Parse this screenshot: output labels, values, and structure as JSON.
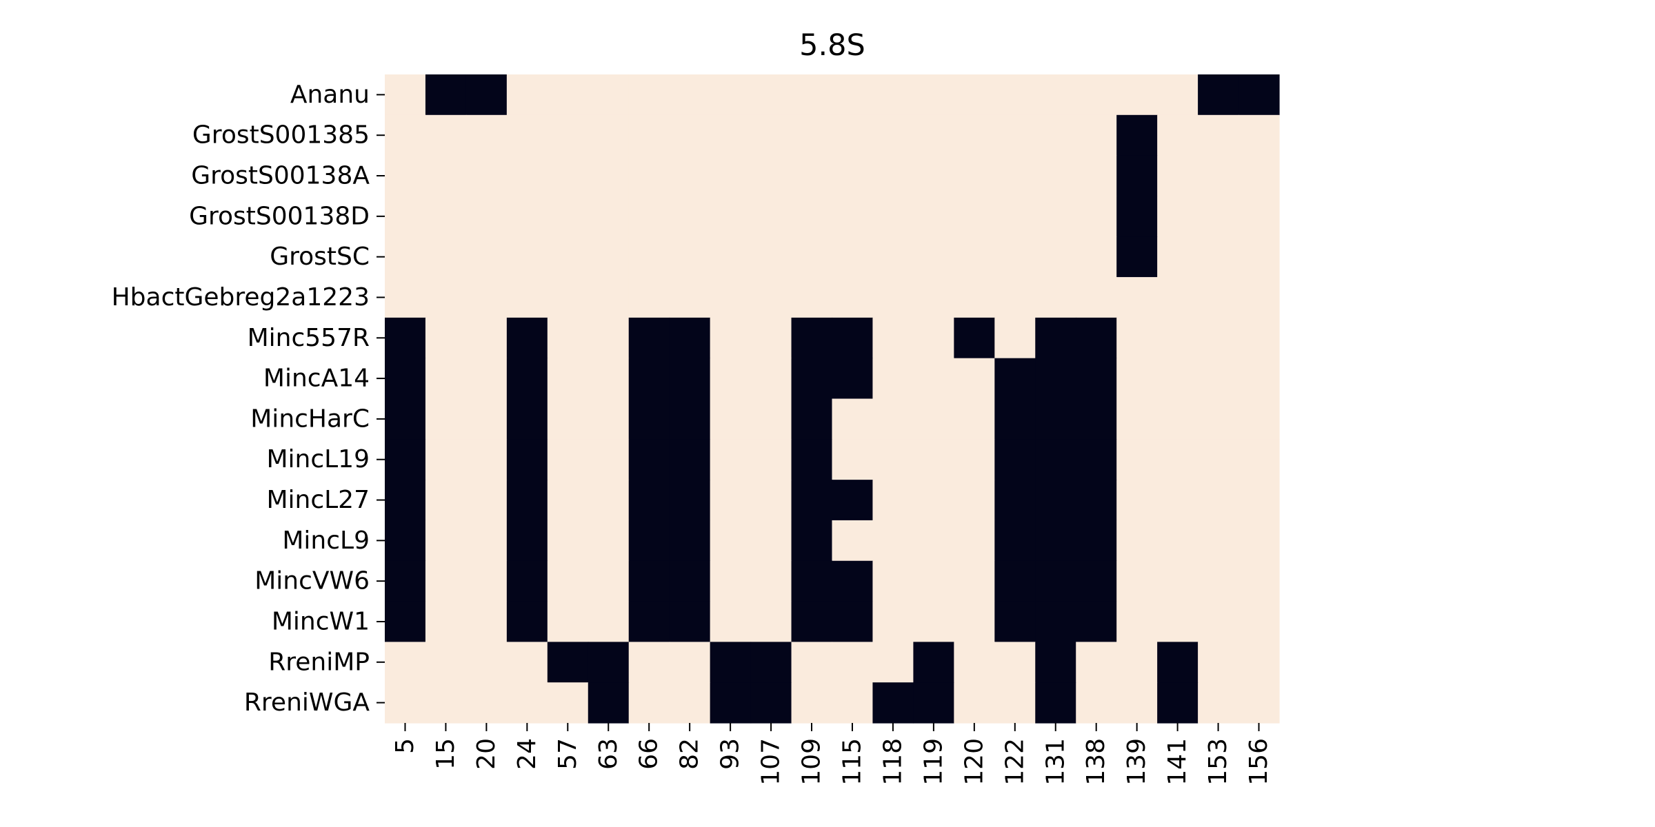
{
  "chart_data": {
    "type": "heatmap",
    "title": "5.8S",
    "xlabel": "",
    "ylabel": "",
    "colorbar": false,
    "colors": {
      "present": "#03051a",
      "absent": "#faebdd",
      "background": "#ffffff",
      "text": "#000000"
    },
    "columns": [
      "5",
      "15",
      "20",
      "24",
      "57",
      "63",
      "66",
      "82",
      "93",
      "107",
      "109",
      "115",
      "118",
      "119",
      "120",
      "122",
      "131",
      "138",
      "139",
      "141",
      "153",
      "156"
    ],
    "rows": [
      "Ananu",
      "GrostS001385",
      "GrostS00138A",
      "GrostS00138D",
      "GrostSC",
      "HbactGebreg2a1223",
      "Minc557R",
      "MincA14",
      "MincHarC",
      "MincL19",
      "MincL27",
      "MincL9",
      "MincVW6",
      "MincW1",
      "RreniMP",
      "RreniWGA"
    ],
    "values": [
      [
        0,
        1,
        1,
        0,
        0,
        0,
        0,
        0,
        0,
        0,
        0,
        0,
        0,
        0,
        0,
        0,
        0,
        0,
        0,
        0,
        1,
        1
      ],
      [
        0,
        0,
        0,
        0,
        0,
        0,
        0,
        0,
        0,
        0,
        0,
        0,
        0,
        0,
        0,
        0,
        0,
        0,
        1,
        0,
        0,
        0
      ],
      [
        0,
        0,
        0,
        0,
        0,
        0,
        0,
        0,
        0,
        0,
        0,
        0,
        0,
        0,
        0,
        0,
        0,
        0,
        1,
        0,
        0,
        0
      ],
      [
        0,
        0,
        0,
        0,
        0,
        0,
        0,
        0,
        0,
        0,
        0,
        0,
        0,
        0,
        0,
        0,
        0,
        0,
        1,
        0,
        0,
        0
      ],
      [
        0,
        0,
        0,
        0,
        0,
        0,
        0,
        0,
        0,
        0,
        0,
        0,
        0,
        0,
        0,
        0,
        0,
        0,
        1,
        0,
        0,
        0
      ],
      [
        0,
        0,
        0,
        0,
        0,
        0,
        0,
        0,
        0,
        0,
        0,
        0,
        0,
        0,
        0,
        0,
        0,
        0,
        0,
        0,
        0,
        0
      ],
      [
        1,
        0,
        0,
        1,
        0,
        0,
        1,
        1,
        0,
        0,
        1,
        1,
        0,
        0,
        1,
        0,
        1,
        1,
        0,
        0,
        0,
        0
      ],
      [
        1,
        0,
        0,
        1,
        0,
        0,
        1,
        1,
        0,
        0,
        1,
        1,
        0,
        0,
        0,
        1,
        1,
        1,
        0,
        0,
        0,
        0
      ],
      [
        1,
        0,
        0,
        1,
        0,
        0,
        1,
        1,
        0,
        0,
        1,
        0,
        0,
        0,
        0,
        1,
        1,
        1,
        0,
        0,
        0,
        0
      ],
      [
        1,
        0,
        0,
        1,
        0,
        0,
        1,
        1,
        0,
        0,
        1,
        0,
        0,
        0,
        0,
        1,
        1,
        1,
        0,
        0,
        0,
        0
      ],
      [
        1,
        0,
        0,
        1,
        0,
        0,
        1,
        1,
        0,
        0,
        1,
        1,
        0,
        0,
        0,
        1,
        1,
        1,
        0,
        0,
        0,
        0
      ],
      [
        1,
        0,
        0,
        1,
        0,
        0,
        1,
        1,
        0,
        0,
        1,
        0,
        0,
        0,
        0,
        1,
        1,
        1,
        0,
        0,
        0,
        0
      ],
      [
        1,
        0,
        0,
        1,
        0,
        0,
        1,
        1,
        0,
        0,
        1,
        1,
        0,
        0,
        0,
        1,
        1,
        1,
        0,
        0,
        0,
        0
      ],
      [
        1,
        0,
        0,
        1,
        0,
        0,
        1,
        1,
        0,
        0,
        1,
        1,
        0,
        0,
        0,
        1,
        1,
        1,
        0,
        0,
        0,
        0
      ],
      [
        0,
        0,
        0,
        0,
        1,
        1,
        0,
        0,
        1,
        1,
        0,
        0,
        0,
        1,
        0,
        0,
        1,
        0,
        0,
        1,
        0,
        0
      ],
      [
        0,
        0,
        0,
        0,
        0,
        1,
        0,
        0,
        1,
        1,
        0,
        0,
        1,
        1,
        0,
        0,
        1,
        0,
        0,
        1,
        0,
        0
      ]
    ]
  }
}
